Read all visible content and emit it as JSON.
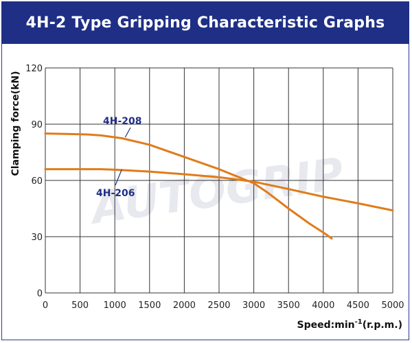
{
  "header": {
    "title": "4H-2 Type Gripping Characteristic Graphs"
  },
  "chart_data": {
    "type": "line",
    "title": "4H-2 Type Gripping Characteristic Graphs",
    "ylabel": "Clamping force(kN)",
    "xlabel_base": "Speed:min",
    "xlabel_sup": "-1",
    "xlabel_tail": "(r.p.m.)",
    "xlim": [
      0,
      5000
    ],
    "ylim": [
      0,
      120
    ],
    "x_ticks": [
      0,
      500,
      1000,
      1500,
      2000,
      2500,
      3000,
      3500,
      4000,
      4500,
      5000
    ],
    "y_ticks": [
      0,
      30,
      60,
      90,
      120
    ],
    "grid": true,
    "line_color": "#e07b1a",
    "label_color": "#1f2f86",
    "series": [
      {
        "name": "4H-208",
        "x": [
          0,
          300,
          600,
          800,
          1100,
          1500,
          2000,
          2500,
          2800,
          3000,
          3200,
          3500,
          3800,
          4050,
          4120
        ],
        "y": [
          85,
          84.8,
          84.5,
          84,
          82.5,
          79,
          72.5,
          66,
          61.5,
          58.5,
          53.5,
          45,
          37,
          31,
          29
        ]
      },
      {
        "name": "4H-206",
        "x": [
          0,
          500,
          800,
          1000,
          1500,
          2000,
          2500,
          3000,
          3500,
          4000,
          4500,
          5000
        ],
        "y": [
          66,
          66,
          66,
          65.7,
          64.7,
          63.3,
          61.7,
          59.3,
          55.4,
          51.3,
          47.8,
          44
        ]
      }
    ],
    "watermark": "AUTOGRIP"
  }
}
